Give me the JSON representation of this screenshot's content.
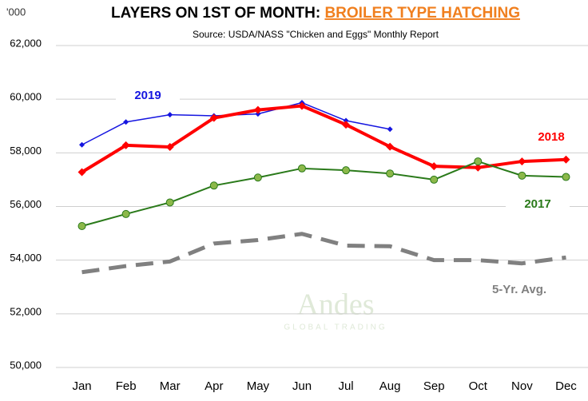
{
  "chart_data": {
    "type": "line",
    "title": "LAYERS ON 1ST OF MONTH: ",
    "title_highlight": "BROILER TYPE HATCHING",
    "subtitle": "Source: USDA/NASS \"Chicken and Eggs\" Monthly Report",
    "y_unit": "'000",
    "watermark": [
      "Andes",
      "GLOBAL TRADING"
    ],
    "categories": [
      "Jan",
      "Feb",
      "Mar",
      "Apr",
      "May",
      "Jun",
      "Jul",
      "Aug",
      "Sep",
      "Oct",
      "Nov",
      "Dec"
    ],
    "ylim": [
      50000,
      62000
    ],
    "yticks": [
      {
        "value": 50000,
        "label": "50,000"
      },
      {
        "value": 52000,
        "label": "52,000"
      },
      {
        "value": 54000,
        "label": "54,000"
      },
      {
        "value": 56000,
        "label": "56,000"
      },
      {
        "value": 58000,
        "label": "58,000"
      },
      {
        "value": 60000,
        "label": "60,000"
      },
      {
        "value": 62000,
        "label": "62,000"
      }
    ],
    "grid": true,
    "series": [
      {
        "name": "2019",
        "color": "#1515e0",
        "values": [
          58300,
          59150,
          59420,
          59380,
          59450,
          59870,
          59200,
          58880,
          null,
          null,
          null,
          null
        ]
      },
      {
        "name": "2018",
        "color": "#ff0000",
        "values": [
          57280,
          58280,
          58220,
          59300,
          59600,
          59750,
          59050,
          58230,
          57500,
          57450,
          57680,
          57750
        ]
      },
      {
        "name": "2017",
        "color": "#2a7a1a",
        "values": [
          55270,
          55720,
          56150,
          56780,
          57080,
          57420,
          57350,
          57230,
          57000,
          57680,
          57150,
          57100
        ]
      },
      {
        "name": "5-Yr. Avg.",
        "color": "#808080",
        "values": [
          53550,
          53780,
          53950,
          54620,
          54750,
          54980,
          54540,
          54520,
          54000,
          54000,
          53880,
          54100
        ]
      }
    ]
  }
}
